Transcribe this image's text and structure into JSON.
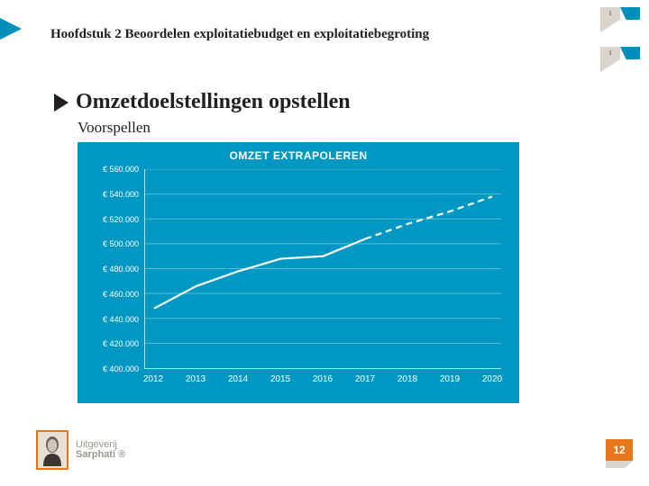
{
  "chapter_title": "Hoofdstuk 2 Beoordelen exploitatiebudget en exploitatiebegroting",
  "section_title": "Omzetdoelstellingen opstellen",
  "subtitle": "Voorspellen",
  "page_number": "12",
  "publisher": {
    "line1": "Uitgeverij",
    "line2": "Sarphati ®"
  },
  "corner_labels": {
    "a": "1",
    "b": "2"
  },
  "chart": {
    "type": "line",
    "title": "OMZET EXTRAPOLEREN",
    "background_color": "#0098c3",
    "grid_color": "rgba(255,255,255,0.35)",
    "axis_color": "#b8e2ee",
    "text_color": "#ffffff",
    "title_fontsize": 12,
    "label_fontsize": 9,
    "ylim": [
      400000,
      560000
    ],
    "ytick_step": 20000,
    "yticks": [
      "€ 560.000",
      "€ 540.000",
      "€ 520.000",
      "€ 500.000",
      "€ 480.000",
      "€ 460.000",
      "€ 440.000",
      "€ 420.000",
      "€ 400.000"
    ],
    "xticks": [
      "2012",
      "2013",
      "2014",
      "2015",
      "2016",
      "2017",
      "2018",
      "2019",
      "2020"
    ],
    "series_actual": {
      "stroke": "#ffffff",
      "stroke_width": 2.2,
      "dash": "none",
      "points": [
        {
          "x": 2012,
          "y": 448000
        },
        {
          "x": 2013,
          "y": 466000
        },
        {
          "x": 2014,
          "y": 478000
        },
        {
          "x": 2015,
          "y": 488000
        },
        {
          "x": 2016,
          "y": 490000
        },
        {
          "x": 2017,
          "y": 504000
        }
      ]
    },
    "series_extrapolated": {
      "stroke": "#ffffff",
      "stroke_width": 2.2,
      "dash": "7 5",
      "points": [
        {
          "x": 2017,
          "y": 504000
        },
        {
          "x": 2018,
          "y": 516000
        },
        {
          "x": 2019,
          "y": 526000
        },
        {
          "x": 2020,
          "y": 538000
        }
      ]
    }
  }
}
